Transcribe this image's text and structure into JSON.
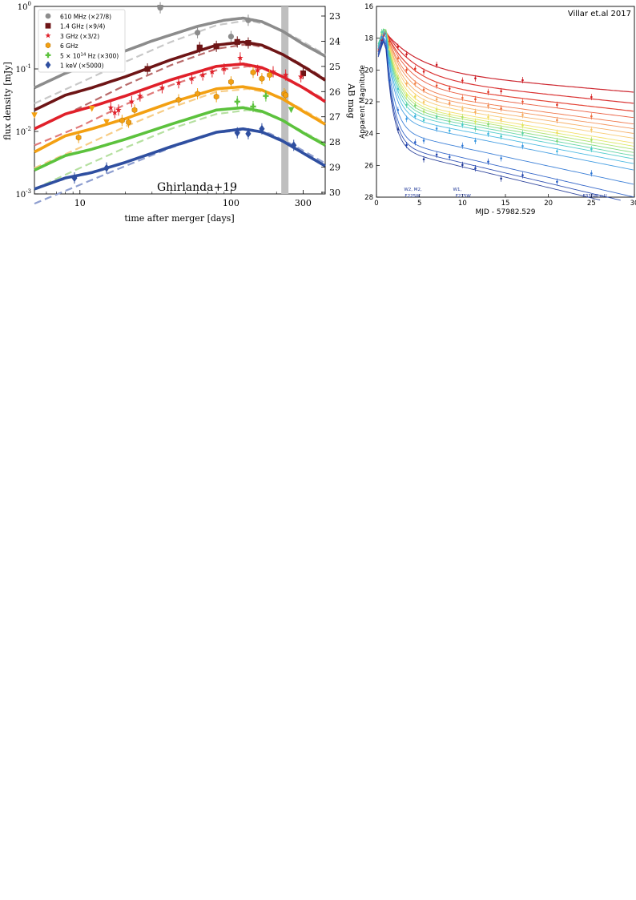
{
  "chart_data": [
    {
      "type": "line",
      "panel_label": "Ghirlanda+19",
      "xlabel": "time after merger [days]",
      "ylabel": "flux density [mJy]",
      "ylabel_right": "AB mag",
      "xscale": "log",
      "yscale": "log",
      "xlim": [
        5,
        420
      ],
      "ylim": [
        0.001,
        1
      ],
      "x_ticks": [
        "10",
        "100",
        "300"
      ],
      "y_ticks": [
        "10$^{-3}$",
        "10$^{-2}$",
        "10$^{-1}$",
        "10$^{0}$"
      ],
      "y_ticks_display": [
        {
          "base": "10",
          "exp": "-3"
        },
        {
          "base": "10",
          "exp": "-2"
        },
        {
          "base": "10",
          "exp": "-1"
        },
        {
          "base": "10",
          "exp": "0"
        }
      ],
      "right_ticks": [
        "23",
        "24",
        "25",
        "26",
        "27",
        "28",
        "29",
        "30"
      ],
      "legend_position": "top-left",
      "shaded_band": [
        215,
        240
      ],
      "series": [
        {
          "name": "610 MHz (×27/8)",
          "color": "#8c8c8c",
          "light_color": "#c8c8c8",
          "marker": "circle",
          "model_solid": [
            [
              5,
              0.05
            ],
            [
              8,
              0.085
            ],
            [
              15,
              0.15
            ],
            [
              30,
              0.28
            ],
            [
              60,
              0.48
            ],
            [
              90,
              0.6
            ],
            [
              120,
              0.65
            ],
            [
              160,
              0.57
            ],
            [
              220,
              0.4
            ],
            [
              300,
              0.25
            ],
            [
              420,
              0.16
            ]
          ],
          "model_dashed": [
            [
              5,
              0.028
            ],
            [
              10,
              0.06
            ],
            [
              20,
              0.13
            ],
            [
              40,
              0.27
            ],
            [
              80,
              0.5
            ],
            [
              130,
              0.6
            ],
            [
              180,
              0.5
            ],
            [
              260,
              0.33
            ],
            [
              420,
              0.17
            ]
          ],
          "points": [
            [
              60,
              0.38
            ],
            [
              100,
              0.33
            ],
            [
              130,
              0.6
            ],
            [
              34,
              0.95
            ]
          ]
        },
        {
          "name": "1.4 GHz (×9/4)",
          "color": "#6e1516",
          "light_color": "#b86a6a",
          "marker": "square",
          "model_solid": [
            [
              5,
              0.022
            ],
            [
              8,
              0.038
            ],
            [
              12,
              0.05
            ],
            [
              20,
              0.075
            ],
            [
              40,
              0.14
            ],
            [
              80,
              0.24
            ],
            [
              120,
              0.27
            ],
            [
              160,
              0.24
            ],
            [
              220,
              0.17
            ],
            [
              300,
              0.11
            ],
            [
              420,
              0.066
            ]
          ],
          "model_dashed": [
            [
              5,
              0.011
            ],
            [
              10,
              0.024
            ],
            [
              20,
              0.055
            ],
            [
              40,
              0.115
            ],
            [
              80,
              0.21
            ],
            [
              130,
              0.25
            ],
            [
              180,
              0.21
            ],
            [
              260,
              0.14
            ],
            [
              420,
              0.07
            ]
          ],
          "points": [
            [
              28,
              0.1
            ],
            [
              62,
              0.22
            ],
            [
              80,
              0.23
            ],
            [
              110,
              0.27
            ],
            [
              130,
              0.26
            ],
            [
              300,
              0.085
            ]
          ]
        },
        {
          "name": "3 GHz (×3/2)",
          "color": "#e0202a",
          "light_color": "#e07a7a",
          "marker": "star",
          "model_solid": [
            [
              5,
              0.011
            ],
            [
              8,
              0.019
            ],
            [
              12,
              0.025
            ],
            [
              20,
              0.037
            ],
            [
              40,
              0.067
            ],
            [
              80,
              0.11
            ],
            [
              120,
              0.12
            ],
            [
              160,
              0.105
            ],
            [
              220,
              0.075
            ],
            [
              300,
              0.05
            ],
            [
              420,
              0.03
            ]
          ],
          "model_dashed": [
            [
              5,
              0.006
            ],
            [
              10,
              0.012
            ],
            [
              20,
              0.027
            ],
            [
              40,
              0.055
            ],
            [
              80,
              0.095
            ],
            [
              130,
              0.11
            ],
            [
              180,
              0.095
            ],
            [
              260,
              0.062
            ],
            [
              420,
              0.032
            ]
          ],
          "points": [
            [
              16,
              0.024
            ],
            [
              17,
              0.02
            ],
            [
              18,
              0.022
            ],
            [
              22,
              0.03
            ],
            [
              25,
              0.037
            ],
            [
              35,
              0.05
            ],
            [
              45,
              0.06
            ],
            [
              55,
              0.07
            ],
            [
              65,
              0.08
            ],
            [
              75,
              0.09
            ],
            [
              90,
              0.1
            ],
            [
              115,
              0.15
            ],
            [
              150,
              0.095
            ],
            [
              190,
              0.09
            ],
            [
              230,
              0.08
            ],
            [
              290,
              0.075
            ]
          ]
        },
        {
          "name": "6 GHz",
          "color": "#f3a012",
          "light_color": "#f7cd86",
          "marker": "hexagon",
          "model_solid": [
            [
              5,
              0.0047
            ],
            [
              8,
              0.0085
            ],
            [
              12,
              0.011
            ],
            [
              20,
              0.016
            ],
            [
              40,
              0.029
            ],
            [
              80,
              0.048
            ],
            [
              120,
              0.052
            ],
            [
              160,
              0.046
            ],
            [
              220,
              0.033
            ],
            [
              300,
              0.021
            ],
            [
              420,
              0.013
            ]
          ],
          "model_dashed": [
            [
              5,
              0.0026
            ],
            [
              10,
              0.0055
            ],
            [
              20,
              0.012
            ],
            [
              40,
              0.024
            ],
            [
              80,
              0.043
            ],
            [
              130,
              0.048
            ],
            [
              180,
              0.041
            ],
            [
              260,
              0.027
            ],
            [
              420,
              0.014
            ]
          ],
          "points": [
            [
              9.8,
              0.008
            ],
            [
              19,
              0.015
            ],
            [
              21,
              0.014
            ],
            [
              23,
              0.022
            ],
            [
              45,
              0.032
            ],
            [
              60,
              0.04
            ],
            [
              80,
              0.036
            ],
            [
              100,
              0.062
            ],
            [
              140,
              0.088
            ],
            [
              160,
              0.07
            ],
            [
              180,
              0.08
            ],
            [
              225,
              0.04
            ],
            [
              230,
              0.038
            ]
          ]
        },
        {
          "name": "5 × 10$^{14}$ Hz (×300)",
          "name_parts": [
            "5 × 10",
            "14",
            " Hz (×300)"
          ],
          "color": "#5cc23d",
          "light_color": "#b5e0a0",
          "marker": "plus",
          "model_solid": [
            [
              5,
              0.0024
            ],
            [
              8,
              0.0041
            ],
            [
              12,
              0.0052
            ],
            [
              20,
              0.0075
            ],
            [
              40,
              0.013
            ],
            [
              80,
              0.022
            ],
            [
              120,
              0.024
            ],
            [
              160,
              0.021
            ],
            [
              220,
              0.015
            ],
            [
              300,
              0.0095
            ],
            [
              420,
              0.006
            ]
          ],
          "model_dashed": [
            [
              5,
              0.0012
            ],
            [
              10,
              0.0026
            ],
            [
              20,
              0.0055
            ],
            [
              40,
              0.011
            ],
            [
              80,
              0.019
            ],
            [
              130,
              0.022
            ],
            [
              180,
              0.019
            ],
            [
              260,
              0.012
            ],
            [
              420,
              0.0064
            ]
          ],
          "points": [
            [
              110,
              0.03
            ],
            [
              140,
              0.025
            ],
            [
              170,
              0.037
            ]
          ]
        },
        {
          "name": "1 keV (×5000)",
          "color": "#2f4fa0",
          "light_color": "#8f9fd0",
          "marker": "diamond",
          "model_solid": [
            [
              5,
              0.0012
            ],
            [
              8,
              0.0018
            ],
            [
              12,
              0.0022
            ],
            [
              20,
              0.0032
            ],
            [
              40,
              0.0057
            ],
            [
              80,
              0.0097
            ],
            [
              120,
              0.011
            ],
            [
              160,
              0.0098
            ],
            [
              220,
              0.007
            ],
            [
              300,
              0.0045
            ],
            [
              420,
              0.0028
            ]
          ],
          "model_dashed": [
            [
              5,
              0.0007
            ],
            [
              10,
              0.0014
            ],
            [
              20,
              0.0028
            ],
            [
              40,
              0.0055
            ],
            [
              80,
              0.0095
            ],
            [
              130,
              0.0108
            ],
            [
              180,
              0.0093
            ],
            [
              260,
              0.006
            ],
            [
              420,
              0.0031
            ]
          ],
          "points": [
            [
              9.2,
              0.0018
            ],
            [
              15,
              0.0026
            ],
            [
              110,
              0.0095
            ],
            [
              130,
              0.0092
            ],
            [
              160,
              0.011
            ],
            [
              260,
              0.006
            ]
          ]
        }
      ],
      "upper_limits": [
        {
          "x": 5,
          "y": 0.018,
          "color": "#f3a012"
        },
        {
          "x": 12,
          "y": 0.023,
          "color": "#f3a012"
        },
        {
          "x": 15,
          "y": 0.014,
          "color": "#f3a012"
        },
        {
          "x": 34,
          "y": 0.95,
          "color": "#8c8c8c"
        },
        {
          "x": 250,
          "y": 0.022,
          "color": "#5cc23d"
        }
      ]
    },
    {
      "type": "line",
      "panel_label": "Villar et.al 2017",
      "xlabel": "MJD - 57982.529",
      "ylabel": "Apparent Magnitude",
      "xlim": [
        0,
        30
      ],
      "ylim": [
        28,
        16
      ],
      "y_inverted": true,
      "x_ticks": [
        "0",
        "5",
        "10",
        "15",
        "20",
        "25",
        "30"
      ],
      "y_ticks": [
        "16",
        "18",
        "20",
        "22",
        "24",
        "26",
        "28"
      ],
      "annotations": [
        {
          "text": "W2, M2,",
          "x": 3.2,
          "y": 27.6
        },
        {
          "text": "F225W",
          "x": 3.3,
          "y": 28.0
        },
        {
          "text": "W1,",
          "x": 8.9,
          "y": 27.6
        },
        {
          "text": "F275W",
          "x": 9.2,
          "y": 28.0
        },
        {
          "text": "F336W,u,U",
          "x": 24.0,
          "y": 28.0
        }
      ],
      "series_colors": [
        "#c8101a",
        "#d61f1f",
        "#e03020",
        "#e84c2c",
        "#ee6a3a",
        "#f28a4c",
        "#f5a85a",
        "#f7c464",
        "#f3dc5c",
        "#d8e85a",
        "#a8e066",
        "#7ad872",
        "#58d2a0",
        "#44c8c8",
        "#3cb4e0",
        "#3496e0",
        "#2c76d4",
        "#245ac4",
        "#2042ac",
        "#1c3494"
      ],
      "series_peak_mag": [
        17.6,
        17.5,
        17.5,
        17.4,
        17.4,
        17.3,
        17.3,
        17.2,
        17.2,
        17.2,
        17.1,
        17.1,
        17.1,
        17.2,
        17.3,
        17.4,
        17.6,
        17.7,
        17.8,
        17.9
      ],
      "series_late_mag": [
        21.4,
        22.1,
        22.6,
        23.0,
        23.4,
        23.7,
        24.0,
        24.3,
        24.6,
        24.8,
        25.0,
        25.2,
        25.4,
        25.6,
        25.9,
        26.3,
        27.2,
        28.0,
        28.4,
        28.7
      ]
    }
  ]
}
